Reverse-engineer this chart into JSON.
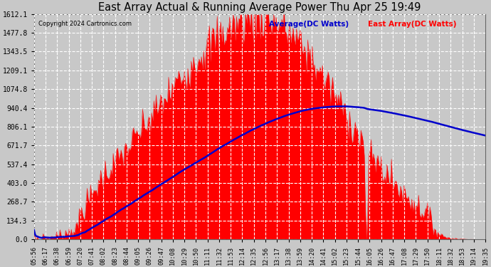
{
  "title": "East Array Actual & Running Average Power Thu Apr 25 19:49",
  "copyright": "Copyright 2024 Cartronics.com",
  "legend_avg": "Average(DC Watts)",
  "legend_east": "East Array(DC Watts)",
  "background_color": "#c8c8c8",
  "plot_bg_color": "#c8c8c8",
  "grid_color": "#ffffff",
  "fill_color": "#ff0000",
  "avg_line_color": "#0000cc",
  "east_line_color": "#ff0000",
  "ylim": [
    0,
    1612.1
  ],
  "yticks": [
    0.0,
    134.3,
    268.7,
    403.0,
    537.4,
    671.7,
    806.1,
    940.4,
    1074.8,
    1209.1,
    1343.5,
    1477.8,
    1612.1
  ],
  "xtick_labels": [
    "05:56",
    "06:17",
    "06:38",
    "06:59",
    "07:20",
    "07:41",
    "08:02",
    "08:23",
    "08:44",
    "09:05",
    "09:26",
    "09:47",
    "10:08",
    "10:29",
    "10:50",
    "11:11",
    "11:32",
    "11:53",
    "12:14",
    "12:35",
    "12:56",
    "13:17",
    "13:38",
    "13:59",
    "14:20",
    "14:41",
    "15:02",
    "15:23",
    "15:44",
    "16:05",
    "16:26",
    "16:47",
    "17:08",
    "17:29",
    "17:50",
    "18:11",
    "18:32",
    "18:53",
    "19:14",
    "19:35"
  ],
  "num_points": 400
}
